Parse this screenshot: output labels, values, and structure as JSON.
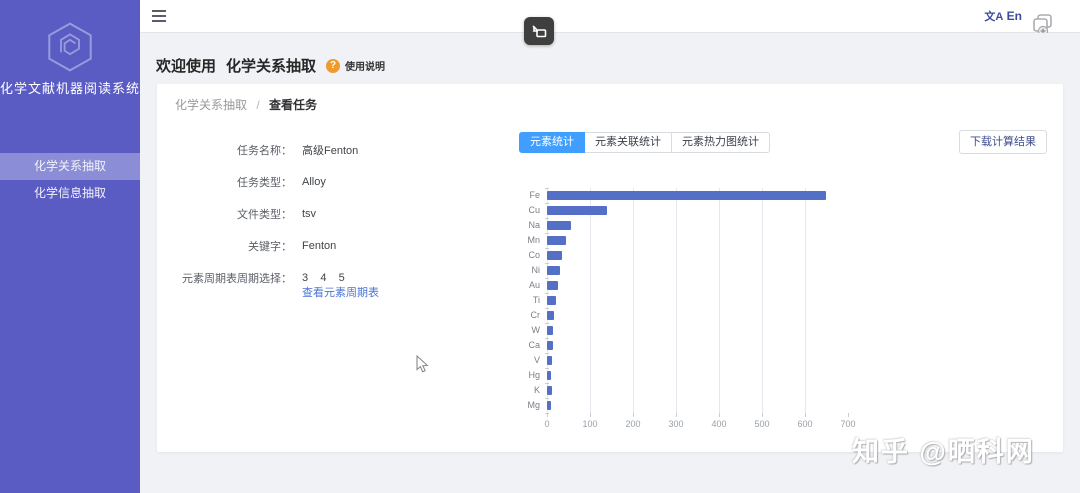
{
  "sidebar": {
    "title": "化学文献机器阅读系统",
    "items": [
      {
        "label": "化学关系抽取",
        "active": true
      },
      {
        "label": "化学信息抽取",
        "active": false
      }
    ]
  },
  "topbar": {
    "lang_icon_text": "文A",
    "lang_label": "En"
  },
  "page": {
    "welcome_prefix": "欢迎使用",
    "welcome_title": "化学关系抽取",
    "help_icon": "?",
    "help_label": "使用说明"
  },
  "breadcrumb": {
    "section": "化学关系抽取",
    "separator": "/",
    "current": "查看任务"
  },
  "form": {
    "fields": [
      {
        "label": "任务名称：",
        "value": "高级Fenton"
      },
      {
        "label": "任务类型：",
        "value": "Alloy"
      },
      {
        "label": "文件类型：",
        "value": "tsv"
      },
      {
        "label": "关键字：",
        "value": "Fenton"
      },
      {
        "label": "元素周期表周期选择：",
        "value": "3    4    5"
      }
    ],
    "periodic_link": "查看元素周期表"
  },
  "tabs": [
    {
      "label": "元素统计",
      "selected": true
    },
    {
      "label": "元素关联统计",
      "selected": false
    },
    {
      "label": "元素热力图统计",
      "selected": false
    }
  ],
  "download_button": "下载计算结果",
  "chart_data": {
    "type": "bar",
    "orientation": "horizontal",
    "title": "",
    "categories": [
      "Fe",
      "Cu",
      "Na",
      "Mn",
      "Co",
      "Ni",
      "Au",
      "Ti",
      "Cr",
      "W",
      "Ca",
      "V",
      "Hg",
      "K",
      "Mg"
    ],
    "values": [
      650,
      140,
      56,
      45,
      36,
      31,
      26,
      21,
      17,
      15,
      14,
      12,
      10,
      12,
      10
    ],
    "xlabel": "",
    "ylabel": "",
    "xlim": [
      0,
      700
    ],
    "x_ticks": [
      0,
      100,
      200,
      300,
      400,
      500,
      600,
      700
    ],
    "grid": true,
    "bar_color": "#5470c6"
  },
  "watermark": "知乎 @晒科网",
  "colors": {
    "sidebar_bg": "#5a5cc4",
    "tab_selected_bg": "#409eff",
    "bar_color": "#5470c6",
    "link_color": "#4a74d6",
    "help_icon_bg": "#ee9b2e"
  }
}
